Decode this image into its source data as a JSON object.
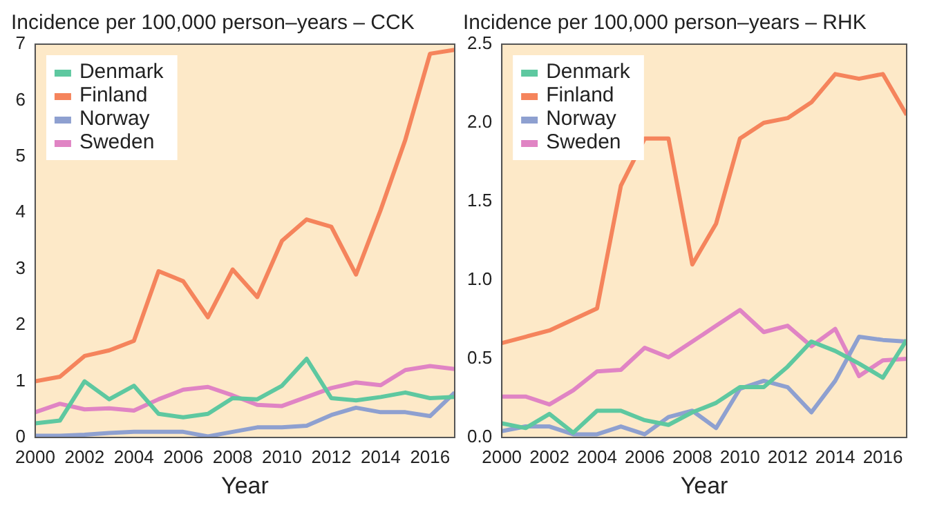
{
  "chart_data": [
    {
      "type": "line",
      "title": "Incidence per 100,000 person–years – CCK",
      "xlabel": "Year",
      "x": [
        2000,
        2001,
        2002,
        2003,
        2004,
        2005,
        2006,
        2007,
        2008,
        2009,
        2010,
        2011,
        2012,
        2013,
        2014,
        2015,
        2016,
        2017
      ],
      "series": [
        {
          "name": "Denmark",
          "color": "#5ec8a0",
          "values": [
            0.25,
            0.3,
            1.0,
            0.68,
            0.92,
            0.42,
            0.36,
            0.42,
            0.7,
            0.68,
            0.92,
            1.4,
            0.7,
            0.66,
            0.72,
            0.8,
            0.7,
            0.72
          ]
        },
        {
          "name": "Finland",
          "color": "#f5845c",
          "values": [
            1.0,
            1.08,
            1.45,
            1.55,
            1.72,
            2.96,
            2.78,
            2.14,
            2.99,
            2.5,
            3.5,
            3.88,
            3.75,
            2.9,
            4.05,
            5.3,
            6.83,
            6.9
          ]
        },
        {
          "name": "Norway",
          "color": "#8ea0d0",
          "values": [
            0.03,
            0.03,
            0.05,
            0.08,
            0.1,
            0.1,
            0.1,
            0.02,
            0.1,
            0.18,
            0.18,
            0.21,
            0.4,
            0.53,
            0.45,
            0.45,
            0.38,
            0.8
          ]
        },
        {
          "name": "Sweden",
          "color": "#e084c4",
          "values": [
            0.45,
            0.6,
            0.5,
            0.52,
            0.48,
            0.68,
            0.85,
            0.9,
            0.75,
            0.58,
            0.56,
            0.72,
            0.88,
            0.98,
            0.93,
            1.2,
            1.27,
            1.22
          ]
        }
      ],
      "xlim": [
        2000,
        2017
      ],
      "xticks": [
        2000,
        2002,
        2004,
        2006,
        2008,
        2010,
        2012,
        2014,
        2016
      ],
      "ylim": [
        0,
        7
      ],
      "yticks": [
        0,
        1,
        2,
        3,
        4,
        5,
        6,
        7
      ],
      "grid": false,
      "legend": "top left",
      "marker": "none",
      "line_style": "solid"
    },
    {
      "type": "line",
      "title": "Incidence per 100,000 person–years – RHK",
      "xlabel": "Year",
      "x": [
        2000,
        2001,
        2002,
        2003,
        2004,
        2005,
        2006,
        2007,
        2008,
        2009,
        2010,
        2011,
        2012,
        2013,
        2014,
        2015,
        2016,
        2017
      ],
      "series": [
        {
          "name": "Denmark",
          "color": "#5ec8a0",
          "values": [
            0.09,
            0.06,
            0.15,
            0.03,
            0.17,
            0.17,
            0.11,
            0.08,
            0.16,
            0.22,
            0.32,
            0.32,
            0.45,
            0.61,
            0.55,
            0.47,
            0.38,
            0.62
          ]
        },
        {
          "name": "Finland",
          "color": "#f5845c",
          "values": [
            0.6,
            0.64,
            0.68,
            0.75,
            0.82,
            1.6,
            1.9,
            1.9,
            1.1,
            1.36,
            1.9,
            2.0,
            2.03,
            2.13,
            2.31,
            2.28,
            2.31,
            2.05
          ]
        },
        {
          "name": "Norway",
          "color": "#8ea0d0",
          "values": [
            0.04,
            0.07,
            0.07,
            0.02,
            0.02,
            0.07,
            0.02,
            0.13,
            0.17,
            0.06,
            0.31,
            0.36,
            0.32,
            0.16,
            0.36,
            0.64,
            0.62,
            0.61
          ]
        },
        {
          "name": "Sweden",
          "color": "#e084c4",
          "values": [
            0.26,
            0.26,
            0.21,
            0.3,
            0.42,
            0.43,
            0.57,
            0.51,
            0.61,
            0.71,
            0.81,
            0.67,
            0.71,
            0.58,
            0.69,
            0.39,
            0.49,
            0.5
          ]
        }
      ],
      "xlim": [
        2000,
        2017
      ],
      "xticks": [
        2000,
        2002,
        2004,
        2006,
        2008,
        2010,
        2012,
        2014,
        2016
      ],
      "ylim": [
        0,
        2.5
      ],
      "yticks": [
        {
          "value": 0,
          "label": "0.0"
        },
        {
          "value": 0.5,
          "label": "0.5"
        },
        {
          "value": 1,
          "label": "1.0"
        },
        {
          "value": 1.5,
          "label": "1.5"
        },
        {
          "value": 2,
          "label": "2.0"
        },
        {
          "value": 2.5,
          "label": "2.5"
        }
      ],
      "grid": false,
      "legend": "top left",
      "marker": "none",
      "line_style": "solid"
    }
  ]
}
